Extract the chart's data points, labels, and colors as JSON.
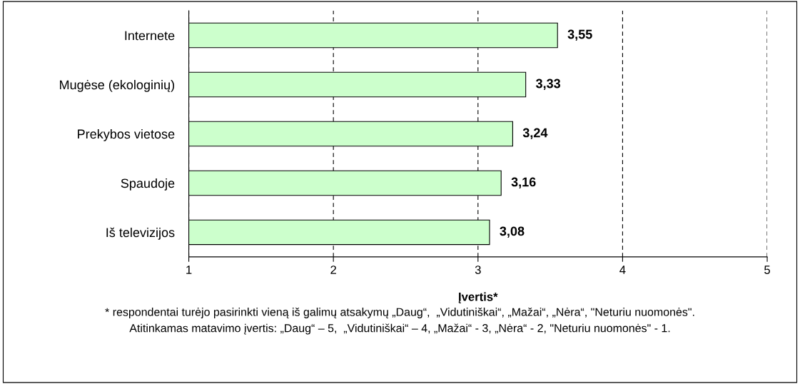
{
  "chart_data": {
    "type": "bar",
    "orientation": "horizontal",
    "xlabel": "Įvertis*",
    "categories": [
      "Internete",
      "Mugėse (ekologinių)",
      "Prekybos vietose",
      "Spaudoje",
      "Iš televizijos"
    ],
    "values": [
      3.55,
      3.33,
      3.24,
      3.16,
      3.08
    ],
    "value_labels": [
      "3,55",
      "3,33",
      "3,24",
      "3,16",
      "3,08"
    ],
    "color": "#ccffcc",
    "xlim": [
      1,
      5
    ],
    "xticks": [
      1,
      2,
      3,
      4,
      5
    ],
    "grid": "x",
    "annotations": [
      "* respondentai turėjo pasirinkti vieną iš galimų atsakymų „Daug“,  „Vidutiniškai“, „Mažai“, „Nėra“, \"Neturiu nuomonės\".",
      "Atitinkamas matavimo įvertis: „Daug“ – 5,  „Vidutiniškai“ – 4, „Mažai“ - 3, „Nėra“ - 2, \"Neturiu nuomonės\" - 1."
    ]
  }
}
